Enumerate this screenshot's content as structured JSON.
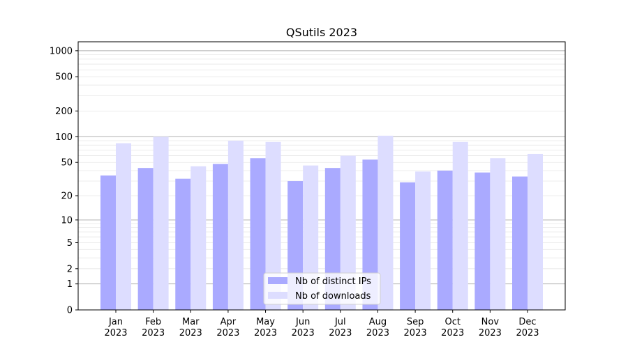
{
  "chart_data": {
    "type": "bar",
    "title": "QSutils 2023",
    "xlabel": "",
    "ylabel": "",
    "yscale": "log(1+y)",
    "ylim": [
      0,
      1270
    ],
    "yticks": [
      0,
      1,
      2,
      5,
      10,
      20,
      50,
      100,
      200,
      500,
      1000
    ],
    "grid": true,
    "legend_position": "bottom-center",
    "categories": [
      "Jan\n2023",
      "Feb\n2023",
      "Mar\n2023",
      "Apr\n2023",
      "May\n2023",
      "Jun\n2023",
      "Jul\n2023",
      "Aug\n2023",
      "Sep\n2023",
      "Oct\n2023",
      "Nov\n2023",
      "Dec\n2023"
    ],
    "series": [
      {
        "name": "Nb of distinct IPs",
        "color": "#aaaaff",
        "values": [
          35,
          43,
          32,
          48,
          56,
          30,
          43,
          54,
          29,
          40,
          38,
          34
        ]
      },
      {
        "name": "Nb of downloads",
        "color": "#ddddff",
        "values": [
          84,
          100,
          45,
          90,
          87,
          46,
          60,
          103,
          39,
          87,
          56,
          63
        ]
      }
    ]
  }
}
